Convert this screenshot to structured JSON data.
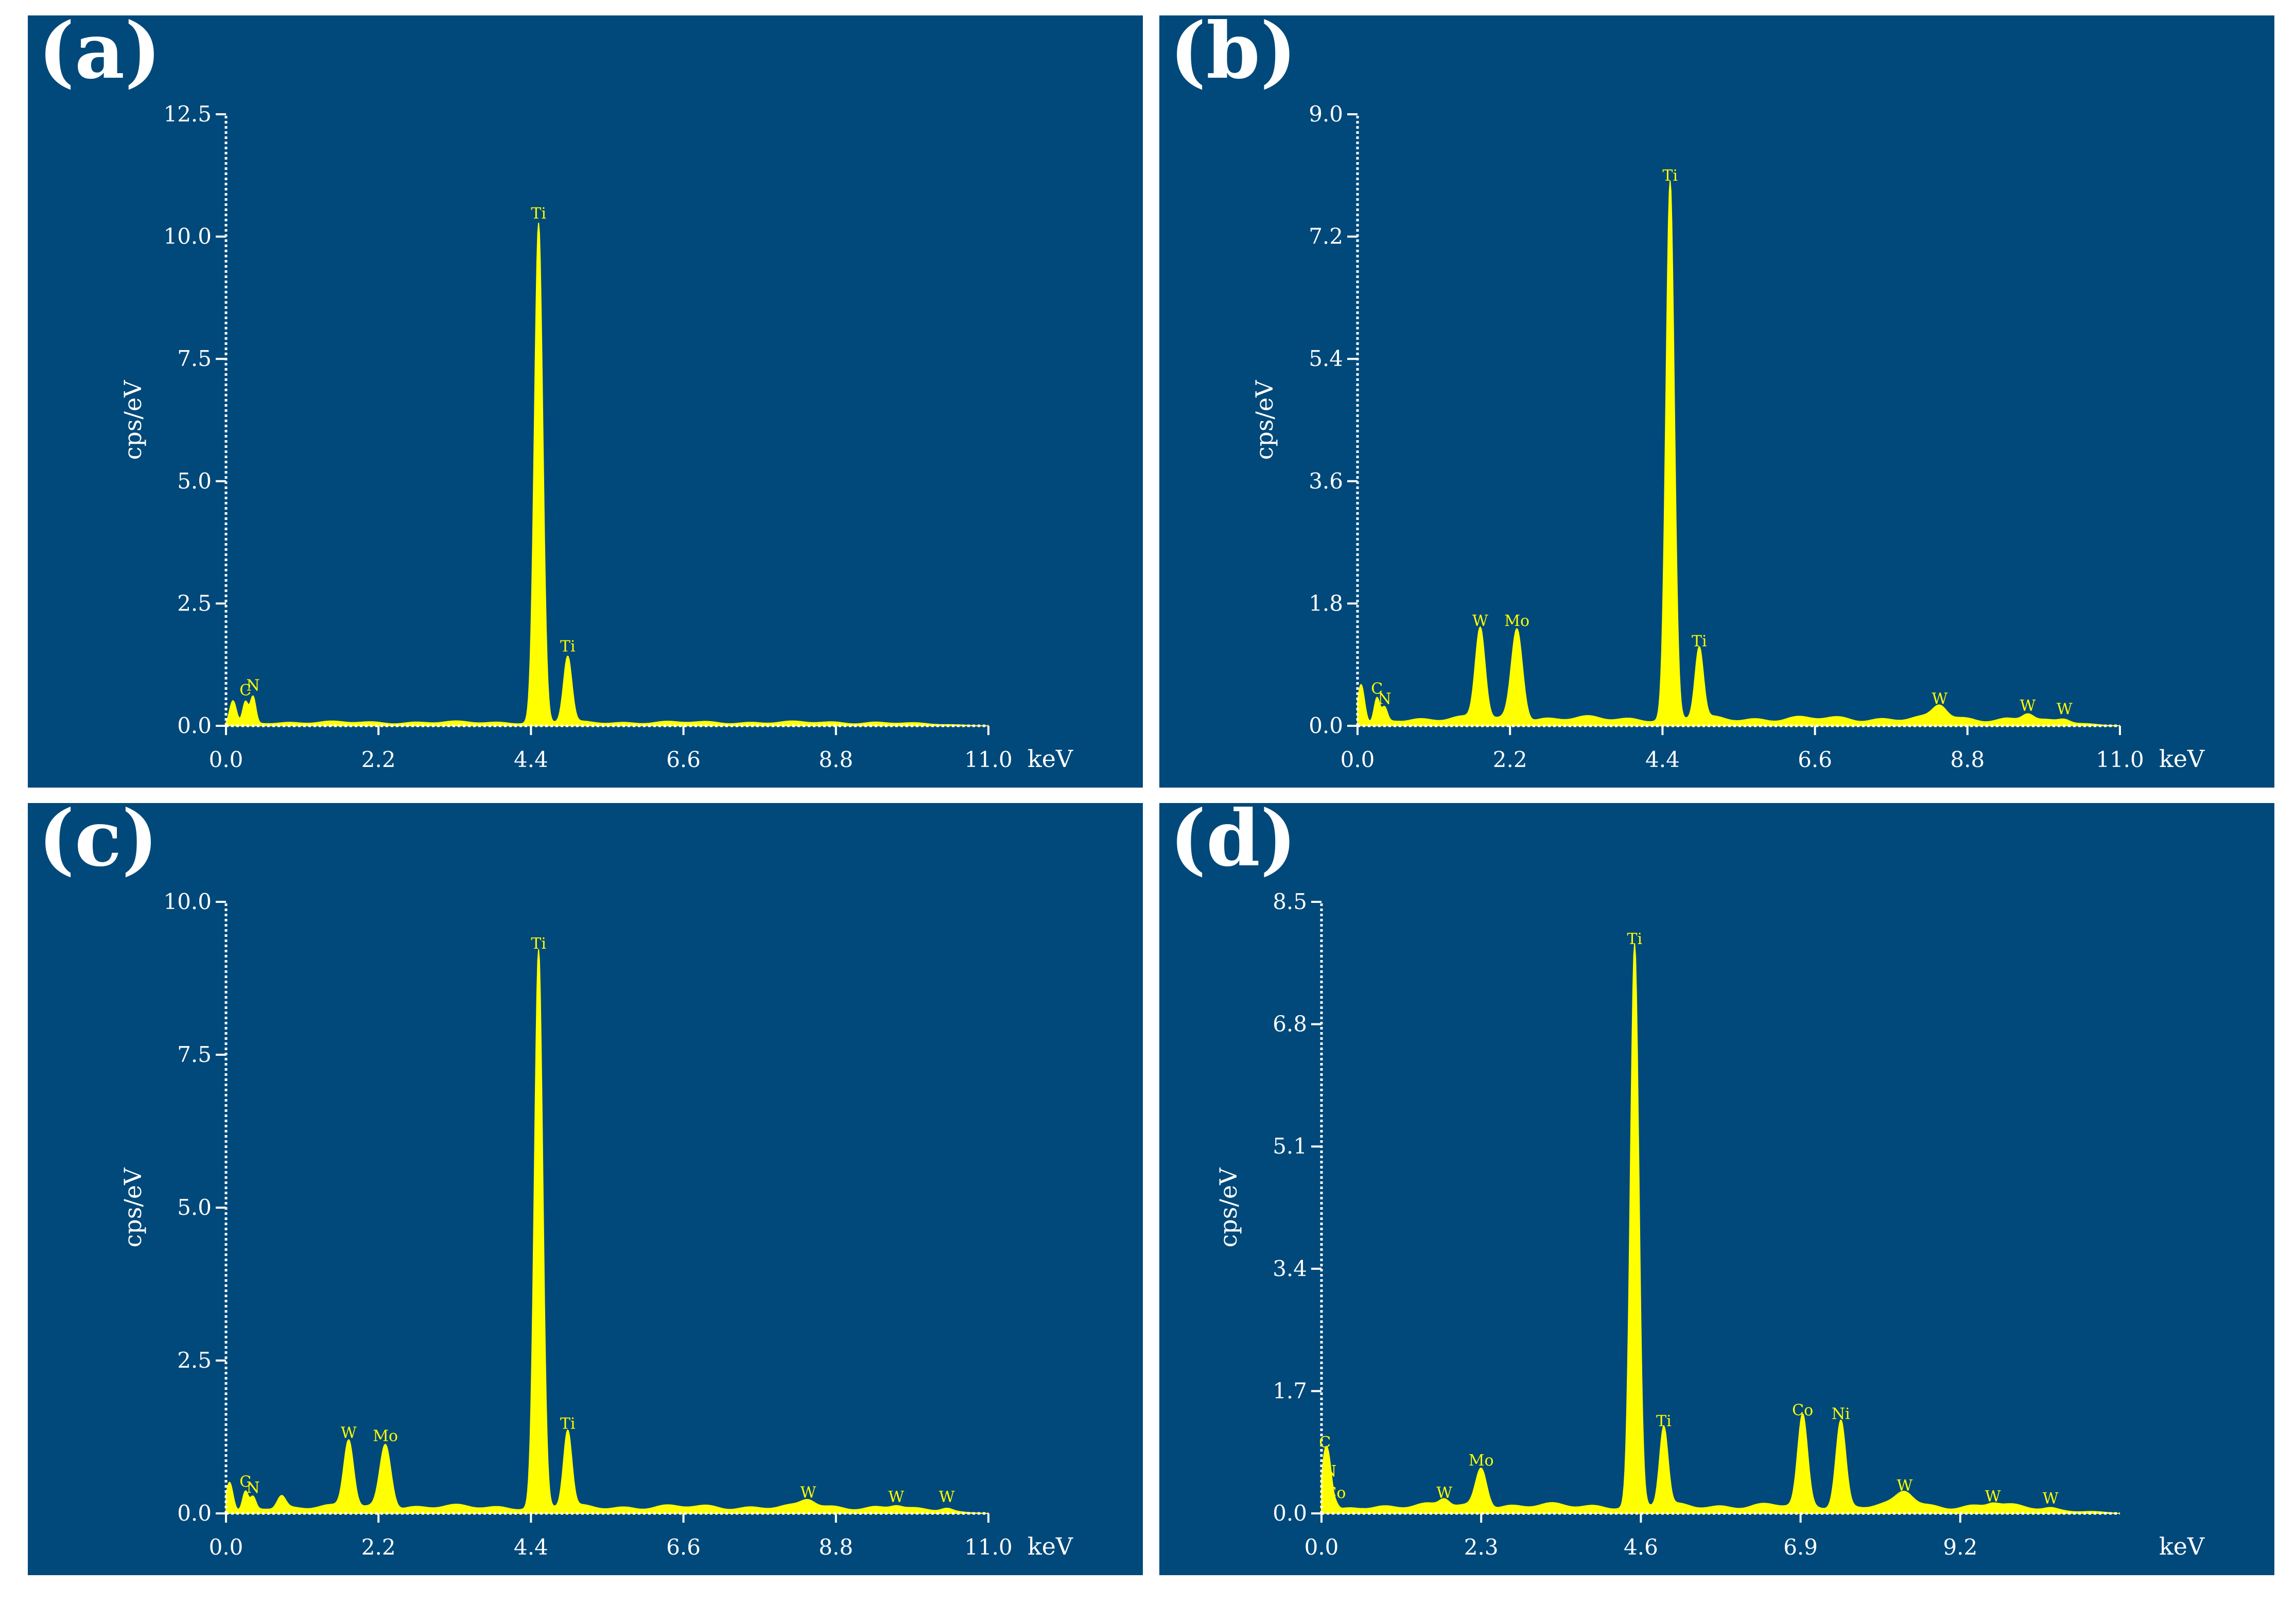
{
  "colors": {
    "background": "#00497a",
    "spectrum": "#ffff00",
    "axis": "#ffffff"
  },
  "chart_data": [
    {
      "panel_label": "(a)",
      "type": "area",
      "xlabel": "keV",
      "ylabel": "cps/eV",
      "xlim": [
        0,
        11.0
      ],
      "ylim": [
        0,
        12.5
      ],
      "x_ticks": [
        "0.0",
        "2.2",
        "4.4",
        "6.6",
        "8.8",
        "11.0"
      ],
      "y_ticks": [
        "0.0",
        "2.5",
        "5.0",
        "7.5",
        "10.0",
        "12.5"
      ],
      "peaks": [
        {
          "x": 0.1,
          "y": 0.5,
          "w": 0.05
        },
        {
          "x": 0.28,
          "y": 0.45,
          "label": "C",
          "w": 0.04
        },
        {
          "x": 0.39,
          "y": 0.55,
          "label": "N",
          "w": 0.04
        },
        {
          "x": 4.51,
          "y": 10.2,
          "label": "Ti",
          "w": 0.06
        },
        {
          "x": 4.93,
          "y": 1.35,
          "label": "Ti",
          "w": 0.06
        }
      ],
      "baseline": 0.1
    },
    {
      "panel_label": "(b)",
      "type": "area",
      "xlabel": "keV",
      "ylabel": "cps/eV",
      "xlim": [
        0,
        11.0
      ],
      "ylim": [
        0,
        9.0
      ],
      "x_ticks": [
        "0.0",
        "2.2",
        "4.4",
        "6.6",
        "8.8",
        "11.0"
      ],
      "y_ticks": [
        "0.0",
        "1.8",
        "3.6",
        "5.4",
        "7.2",
        "9.0"
      ],
      "peaks": [
        {
          "x": 0.05,
          "y": 0.6,
          "w": 0.05
        },
        {
          "x": 0.28,
          "y": 0.35,
          "label": "C",
          "w": 0.04
        },
        {
          "x": 0.39,
          "y": 0.2,
          "label": "N",
          "w": 0.04
        },
        {
          "x": 1.77,
          "y": 1.35,
          "label": "W",
          "w": 0.07
        },
        {
          "x": 2.3,
          "y": 1.35,
          "label": "Mo",
          "w": 0.08
        },
        {
          "x": 4.51,
          "y": 7.9,
          "label": "Ti",
          "w": 0.06
        },
        {
          "x": 4.93,
          "y": 1.05,
          "label": "Ti",
          "w": 0.06
        },
        {
          "x": 8.4,
          "y": 0.2,
          "label": "W",
          "w": 0.1
        },
        {
          "x": 9.67,
          "y": 0.1,
          "label": "W",
          "w": 0.08
        },
        {
          "x": 10.2,
          "y": 0.05,
          "label": "W",
          "w": 0.08
        }
      ],
      "baseline": 0.15
    },
    {
      "panel_label": "(c)",
      "type": "area",
      "xlabel": "keV",
      "ylabel": "cps/eV",
      "xlim": [
        0,
        11.0
      ],
      "ylim": [
        0,
        10.0
      ],
      "x_ticks": [
        "0.0",
        "2.2",
        "4.4",
        "6.6",
        "8.8",
        "11.0"
      ],
      "y_ticks": [
        "0.0",
        "2.5",
        "5.0",
        "7.5",
        "10.0"
      ],
      "peaks": [
        {
          "x": 0.05,
          "y": 0.5,
          "w": 0.05
        },
        {
          "x": 0.28,
          "y": 0.3,
          "label": "C",
          "w": 0.04
        },
        {
          "x": 0.39,
          "y": 0.2,
          "label": "N",
          "w": 0.04
        },
        {
          "x": 0.8,
          "y": 0.2,
          "w": 0.06
        },
        {
          "x": 1.77,
          "y": 1.1,
          "label": "W",
          "w": 0.07
        },
        {
          "x": 2.3,
          "y": 1.05,
          "label": "Mo",
          "w": 0.08
        },
        {
          "x": 4.51,
          "y": 9.1,
          "label": "Ti",
          "w": 0.06
        },
        {
          "x": 4.93,
          "y": 1.25,
          "label": "Ti",
          "w": 0.06
        },
        {
          "x": 8.4,
          "y": 0.12,
          "label": "W",
          "w": 0.1
        },
        {
          "x": 9.67,
          "y": 0.05,
          "label": "W",
          "w": 0.08
        },
        {
          "x": 10.4,
          "y": 0.05,
          "label": "W",
          "w": 0.08
        }
      ],
      "baseline": 0.15
    },
    {
      "panel_label": "(d)",
      "type": "area",
      "xlabel": "keV",
      "ylabel": "cps/eV",
      "xlim": [
        0,
        11.5
      ],
      "ylim": [
        0,
        8.5
      ],
      "x_ticks": [
        "0.0",
        "2.3",
        "4.6",
        "6.9",
        "9.2"
      ],
      "y_ticks": [
        "0.0",
        "1.7",
        "3.4",
        "5.1",
        "6.8",
        "8.5"
      ],
      "peaks": [
        {
          "x": 0.05,
          "y": 0.8,
          "label": "C",
          "w": 0.05
        },
        {
          "x": 0.12,
          "y": 0.4,
          "label": "N",
          "w": 0.04
        },
        {
          "x": 0.2,
          "y": 0.1,
          "label": "Co",
          "w": 0.04
        },
        {
          "x": 1.77,
          "y": 0.1,
          "label": "W",
          "w": 0.07
        },
        {
          "x": 2.3,
          "y": 0.55,
          "label": "Mo",
          "w": 0.08
        },
        {
          "x": 4.51,
          "y": 7.8,
          "label": "Ti",
          "w": 0.06
        },
        {
          "x": 4.93,
          "y": 1.1,
          "label": "Ti",
          "w": 0.06
        },
        {
          "x": 6.93,
          "y": 1.25,
          "label": "Co",
          "w": 0.07
        },
        {
          "x": 7.48,
          "y": 1.2,
          "label": "Ni",
          "w": 0.07
        },
        {
          "x": 8.4,
          "y": 0.2,
          "label": "W",
          "w": 0.12
        },
        {
          "x": 9.67,
          "y": 0.05,
          "label": "W",
          "w": 0.08
        },
        {
          "x": 10.5,
          "y": 0.02,
          "label": "W",
          "w": 0.08
        }
      ],
      "baseline": 0.15
    }
  ]
}
